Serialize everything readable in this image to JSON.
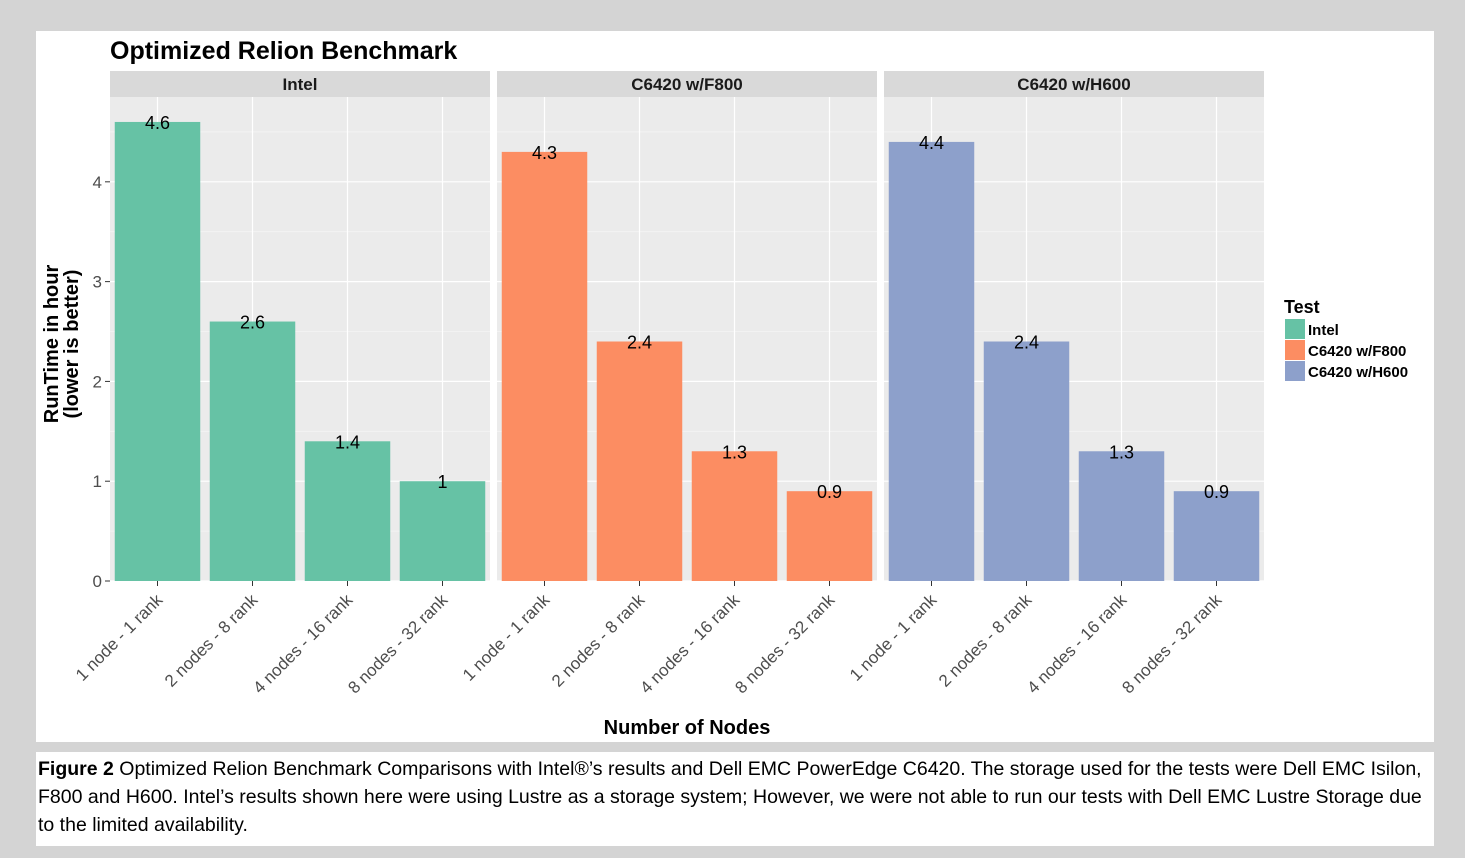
{
  "chart_data": {
    "type": "bar",
    "title": "Optimized Relion Benchmark",
    "xlabel": "Number of Nodes",
    "ylabel_lines": [
      "RunTime in hour",
      "(lower is better)"
    ],
    "ylim": [
      0,
      4.85
    ],
    "yticks": [
      0,
      1,
      2,
      3,
      4
    ],
    "grid": true,
    "legend_placement": "right",
    "legend_title": "Test",
    "categories": [
      "1 node - 1 rank",
      "2 nodes - 8 rank",
      "4 nodes - 16 rank",
      "8 nodes - 32 rank"
    ],
    "series": [
      {
        "name": "Intel",
        "color": "#66c2a5",
        "values": [
          4.6,
          2.6,
          1.4,
          1
        ],
        "labels": [
          "4.6",
          "2.6",
          "1.4",
          "1"
        ]
      },
      {
        "name": "C6420 w/F800",
        "color": "#fc8d62",
        "values": [
          4.3,
          2.4,
          1.3,
          0.9
        ],
        "labels": [
          "4.3",
          "2.4",
          "1.3",
          "0.9"
        ]
      },
      {
        "name": "C6420 w/H600",
        "color": "#8da0cb",
        "values": [
          4.4,
          2.4,
          1.3,
          0.9
        ],
        "labels": [
          "4.4",
          "2.4",
          "1.3",
          "0.9"
        ]
      }
    ],
    "panel_background": "#ebebeb",
    "strip_background": "#d9d9d9"
  },
  "caption": {
    "label": "Figure 2",
    "text": " Optimized Relion Benchmark Comparisons with Intel®’s results and Dell EMC PowerEdge C6420. The storage used for the tests were Dell EMC Isilon, F800 and H600. Intel’s results shown here were using Lustre as a storage system; However, we were not able to run our tests with Dell EMC Lustre Storage due to the limited availability."
  }
}
